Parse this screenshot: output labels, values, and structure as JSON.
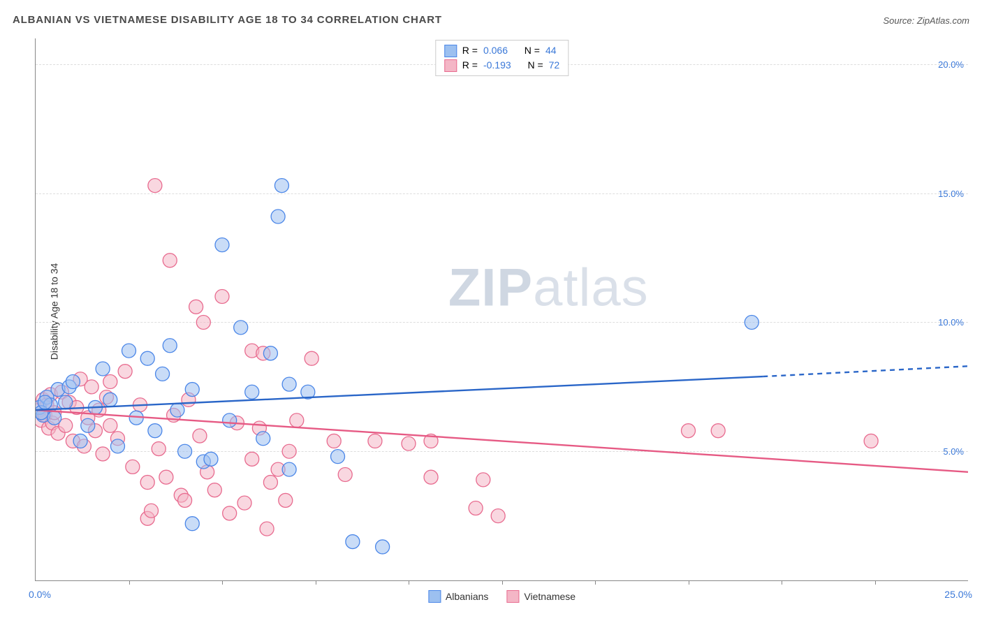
{
  "header": {
    "title": "ALBANIAN VS VIETNAMESE DISABILITY AGE 18 TO 34 CORRELATION CHART",
    "source_label": "Source: ZipAtlas.com"
  },
  "ylabel": "Disability Age 18 to 34",
  "watermark": {
    "bold": "ZIP",
    "rest": "atlas"
  },
  "chart": {
    "type": "scatter-with-regression",
    "background_color": "#ffffff",
    "grid_color": "#dddddd",
    "axis_color": "#888888",
    "xlim": [
      0,
      25
    ],
    "ylim": [
      0,
      21
    ],
    "x_origin_label": "0.0%",
    "x_max_label": "25.0%",
    "x_ticks": [
      2.5,
      5,
      7.5,
      10,
      12.5,
      15,
      17.5,
      20,
      22.5
    ],
    "y_gridlines": [
      {
        "value": 5,
        "label": "5.0%"
      },
      {
        "value": 10,
        "label": "10.0%"
      },
      {
        "value": 15,
        "label": "15.0%"
      },
      {
        "value": 20,
        "label": "20.0%"
      }
    ],
    "marker_radius": 10,
    "series": {
      "albanians": {
        "label": "Albanians",
        "fill": "#9cc0f0",
        "stroke": "#4a86e8",
        "fill_opacity": 0.55,
        "regression": {
          "solid": {
            "x1": 0,
            "y1": 6.6,
            "x2": 19.5,
            "y2": 7.9
          },
          "dashed": {
            "x1": 19.5,
            "y1": 7.9,
            "x2": 25,
            "y2": 8.3
          },
          "color": "#2a66c8",
          "width": 2.4
        },
        "legend_stats": {
          "R_label": "R =",
          "R": "0.066",
          "N_label": "N =",
          "N": "44"
        },
        "points": [
          [
            0.1,
            6.7
          ],
          [
            0.2,
            6.4
          ],
          [
            0.3,
            7.1
          ],
          [
            0.4,
            6.8
          ],
          [
            0.5,
            6.3
          ],
          [
            0.6,
            7.4
          ],
          [
            0.8,
            6.9
          ],
          [
            0.9,
            7.5
          ],
          [
            1.0,
            7.7
          ],
          [
            1.2,
            5.4
          ],
          [
            1.4,
            6.0
          ],
          [
            1.6,
            6.7
          ],
          [
            1.8,
            8.2
          ],
          [
            2.0,
            7.0
          ],
          [
            2.2,
            5.2
          ],
          [
            2.5,
            8.9
          ],
          [
            2.7,
            6.3
          ],
          [
            3.0,
            8.6
          ],
          [
            3.2,
            5.8
          ],
          [
            3.4,
            8.0
          ],
          [
            3.6,
            9.1
          ],
          [
            3.8,
            6.6
          ],
          [
            4.0,
            5.0
          ],
          [
            4.2,
            7.4
          ],
          [
            4.2,
            2.2
          ],
          [
            4.5,
            4.6
          ],
          [
            4.7,
            4.7
          ],
          [
            5.0,
            13.0
          ],
          [
            5.2,
            6.2
          ],
          [
            5.5,
            9.8
          ],
          [
            5.8,
            7.3
          ],
          [
            6.1,
            5.5
          ],
          [
            6.3,
            8.8
          ],
          [
            6.5,
            14.1
          ],
          [
            6.6,
            15.3
          ],
          [
            6.8,
            7.6
          ],
          [
            6.8,
            4.3
          ],
          [
            7.3,
            7.3
          ],
          [
            8.1,
            4.8
          ],
          [
            8.5,
            1.5
          ],
          [
            9.3,
            1.3
          ],
          [
            19.2,
            10.0
          ],
          [
            0.15,
            6.5
          ],
          [
            0.25,
            6.9
          ]
        ]
      },
      "vietnamese": {
        "label": "Vietnamese",
        "fill": "#f4b6c6",
        "stroke": "#e86b8f",
        "fill_opacity": 0.55,
        "regression": {
          "solid": {
            "x1": 0,
            "y1": 6.6,
            "x2": 25,
            "y2": 4.2
          },
          "color": "#e65a84",
          "width": 2.4
        },
        "legend_stats": {
          "R_label": "R =",
          "R": "-0.193",
          "N_label": "N =",
          "N": "72"
        },
        "points": [
          [
            0.1,
            6.6
          ],
          [
            0.15,
            6.2
          ],
          [
            0.2,
            7.0
          ],
          [
            0.25,
            6.4
          ],
          [
            0.3,
            6.8
          ],
          [
            0.35,
            5.9
          ],
          [
            0.4,
            7.2
          ],
          [
            0.45,
            6.1
          ],
          [
            0.5,
            6.5
          ],
          [
            0.6,
            5.7
          ],
          [
            0.7,
            7.3
          ],
          [
            0.8,
            6.0
          ],
          [
            0.9,
            6.9
          ],
          [
            1.0,
            5.4
          ],
          [
            1.1,
            6.7
          ],
          [
            1.2,
            7.8
          ],
          [
            1.3,
            5.2
          ],
          [
            1.4,
            6.3
          ],
          [
            1.5,
            7.5
          ],
          [
            1.6,
            5.8
          ],
          [
            1.7,
            6.6
          ],
          [
            1.8,
            4.9
          ],
          [
            1.9,
            7.1
          ],
          [
            2.0,
            6.0
          ],
          [
            2.2,
            5.5
          ],
          [
            2.4,
            8.1
          ],
          [
            2.6,
            4.4
          ],
          [
            2.8,
            6.8
          ],
          [
            3.0,
            3.8
          ],
          [
            3.0,
            2.4
          ],
          [
            3.2,
            15.3
          ],
          [
            3.3,
            5.1
          ],
          [
            3.5,
            4.0
          ],
          [
            3.6,
            12.4
          ],
          [
            3.7,
            6.4
          ],
          [
            3.9,
            3.3
          ],
          [
            4.0,
            3.1
          ],
          [
            4.1,
            7.0
          ],
          [
            4.3,
            10.6
          ],
          [
            4.4,
            5.6
          ],
          [
            4.5,
            10.0
          ],
          [
            4.6,
            4.2
          ],
          [
            4.8,
            3.5
          ],
          [
            5.0,
            11.0
          ],
          [
            5.2,
            2.6
          ],
          [
            5.4,
            6.1
          ],
          [
            5.6,
            3.0
          ],
          [
            5.8,
            4.7
          ],
          [
            5.8,
            8.9
          ],
          [
            6.0,
            5.9
          ],
          [
            6.1,
            8.8
          ],
          [
            6.2,
            2.0
          ],
          [
            6.3,
            3.8
          ],
          [
            6.5,
            4.3
          ],
          [
            6.7,
            3.1
          ],
          [
            6.8,
            5.0
          ],
          [
            7.0,
            6.2
          ],
          [
            7.4,
            8.6
          ],
          [
            8.0,
            5.4
          ],
          [
            8.3,
            4.1
          ],
          [
            9.1,
            5.4
          ],
          [
            10.0,
            5.3
          ],
          [
            10.6,
            4.0
          ],
          [
            10.6,
            5.4
          ],
          [
            11.8,
            2.8
          ],
          [
            12.0,
            3.9
          ],
          [
            12.4,
            2.5
          ],
          [
            17.5,
            5.8
          ],
          [
            18.3,
            5.8
          ],
          [
            22.4,
            5.4
          ],
          [
            2.0,
            7.7
          ],
          [
            3.1,
            2.7
          ]
        ]
      }
    }
  }
}
